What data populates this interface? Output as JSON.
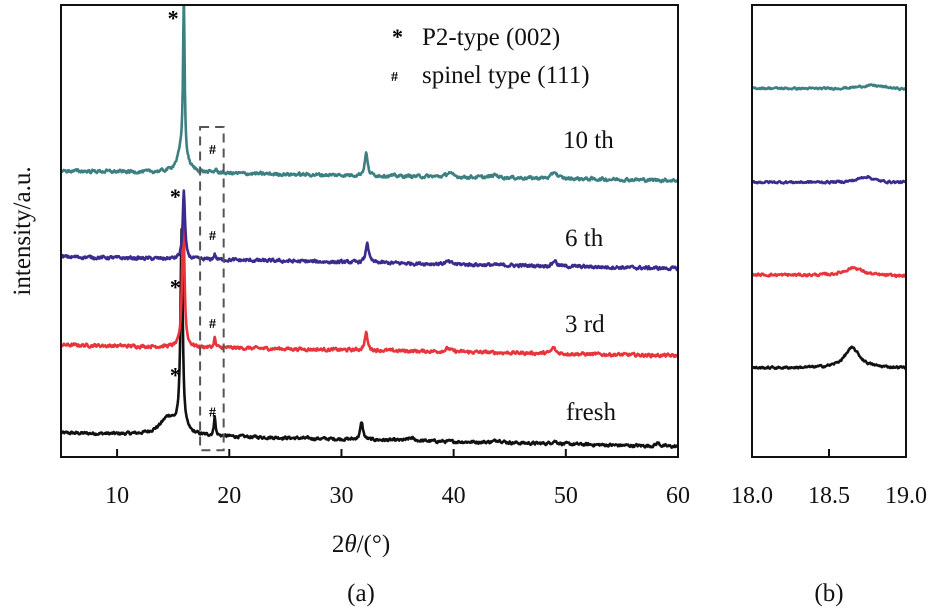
{
  "chart_data": [
    {
      "type": "line",
      "panel_label": "(a)",
      "xlabel_prefix": "2",
      "xlabel_theta": "θ",
      "xlabel_suffix": "/(°)",
      "ylabel": "intensity/a.u.",
      "xlim": [
        5,
        60
      ],
      "ylim": [
        0,
        100
      ],
      "xticks": [
        "10",
        "20",
        "30",
        "40",
        "50",
        "60"
      ],
      "xtick_values": [
        10,
        20,
        30,
        40,
        50,
        60
      ],
      "grid": false,
      "legend": {
        "placement": "top-right",
        "entries": [
          {
            "marker": "*",
            "label": "P2-type (002)",
            "color": "#8e2f55"
          },
          {
            "marker": "#",
            "label": "spinel type (111)",
            "color": "#5f8c7c"
          }
        ]
      },
      "highlight_region": {
        "x": [
          17.4,
          19.5
        ],
        "y": [
          1.5,
          73
        ]
      },
      "series": [
        {
          "name": "fresh",
          "color": "#111111",
          "baseline": [
            5.3,
            2.3
          ],
          "noise": 0.45,
          "peaks": [
            [
              15.75,
              44,
              0.12
            ],
            [
              14.6,
              4,
              0.9
            ],
            [
              18.7,
              4.5,
              0.08
            ],
            [
              31.8,
              3.8,
              0.15
            ],
            [
              36.2,
              0.6,
              0.3
            ],
            [
              44,
              0.6,
              0.4
            ],
            [
              49,
              0.6,
              0.3
            ],
            [
              58.2,
              0.7,
              0.2
            ]
          ],
          "annotations": {
            "star": [
              15.2,
              16.5
            ],
            "hash": [
              18.5,
              9
            ]
          }
        },
        {
          "name": "3 rd",
          "color": "#e8353c",
          "baseline": [
            24.8,
            22.4
          ],
          "noise": 0.5,
          "peaks": [
            [
              15.9,
              31,
              0.12
            ],
            [
              18.7,
              2.2,
              0.08
            ],
            [
              32.2,
              3.8,
              0.15
            ],
            [
              39.5,
              0.7,
              0.3
            ],
            [
              48.9,
              1.3,
              0.2
            ]
          ],
          "annotations": {
            "star": [
              15.2,
              36
            ],
            "hash": [
              18.5,
              28.5
            ]
          }
        },
        {
          "name": "6 th",
          "color": "#3d2a8e",
          "baseline": [
            44.3,
            41.7
          ],
          "noise": 0.5,
          "peaks": [
            [
              15.95,
              15,
              0.12
            ],
            [
              18.7,
              1.2,
              0.1
            ],
            [
              32.3,
              4.5,
              0.15
            ],
            [
              39.5,
              0.5,
              0.3
            ],
            [
              49,
              1.3,
              0.2
            ]
          ],
          "annotations": {
            "star": [
              15.2,
              56
            ],
            "hash": [
              18.5,
              48
            ]
          }
        },
        {
          "name": "10 th",
          "color": "#3c8082",
          "baseline": [
            63.3,
            61.2
          ],
          "noise": 0.5,
          "peaks": [
            [
              15.95,
              35.5,
              0.08
            ],
            [
              15.8,
              5,
              0.5
            ],
            [
              18.8,
              0.6,
              0.15
            ],
            [
              32.2,
              5,
              0.15
            ],
            [
              39.6,
              1.0,
              0.25
            ],
            [
              43.7,
              0.6,
              0.3
            ],
            [
              49,
              1.5,
              0.25
            ]
          ],
          "annotations": {
            "star": [
              15.0,
              95.5
            ],
            "hash": [
              18.5,
              67
            ]
          }
        }
      ]
    },
    {
      "type": "line",
      "panel_label": "(b)",
      "xlim": [
        18.0,
        19.0
      ],
      "ylim": [
        0,
        100
      ],
      "xticks": [
        "18.0",
        "18.5",
        "19.0"
      ],
      "xtick_values": [
        18.0,
        18.5,
        19.0
      ],
      "grid": false,
      "series": [
        {
          "name": "fresh",
          "color": "#111111",
          "baseline": [
            19.7,
            19.7
          ],
          "noise": 0.35,
          "peaks": [
            [
              18.65,
              4.4,
              0.06
            ]
          ]
        },
        {
          "name": "3 rd",
          "color": "#e8353c",
          "baseline": [
            40.3,
            40.0
          ],
          "noise": 0.4,
          "peaks": [
            [
              18.66,
              1.8,
              0.07
            ]
          ]
        },
        {
          "name": "6 th",
          "color": "#3d2a8e",
          "baseline": [
            60.8,
            60.7
          ],
          "noise": 0.35,
          "peaks": [
            [
              18.74,
              1.3,
              0.06
            ]
          ]
        },
        {
          "name": "10 th",
          "color": "#3c8082",
          "baseline": [
            81.6,
            81.2
          ],
          "noise": 0.3,
          "peaks": [
            [
              18.78,
              0.9,
              0.12
            ]
          ]
        }
      ]
    }
  ]
}
